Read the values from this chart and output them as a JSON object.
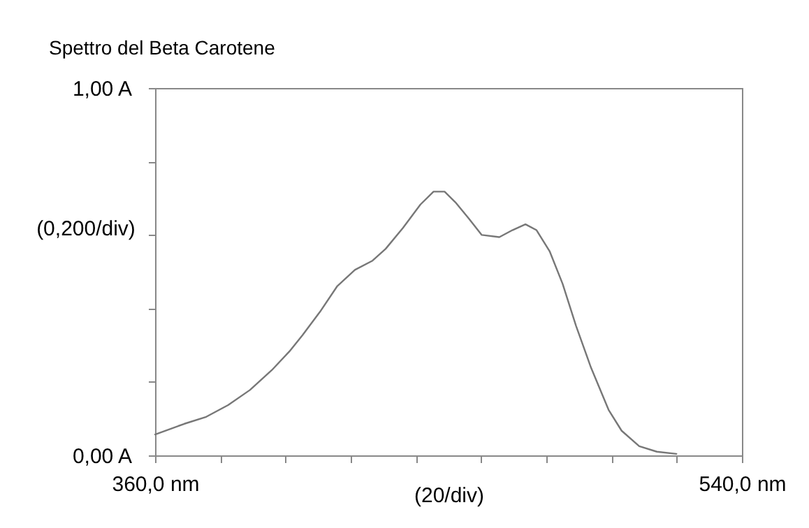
{
  "chart_data": {
    "type": "line",
    "title": "Spettro del Beta Carotene",
    "xlabel": "(20/div)",
    "ylabel": "(0,200/div)",
    "x": [
      360,
      369,
      375.7,
      382.4,
      389.1,
      395.8,
      401.2,
      405.2,
      410.6,
      415.9,
      421.3,
      426.7,
      430.7,
      436.0,
      441.4,
      445.4,
      448.8,
      452.1,
      456.2,
      460.2,
      465.6,
      469.6,
      473.6,
      477.0,
      481.0,
      485.0,
      489.1,
      493.7,
      499.1,
      503.1,
      508.5,
      513.9,
      519.9
    ],
    "values": [
      0.057,
      0.086,
      0.105,
      0.137,
      0.178,
      0.232,
      0.283,
      0.327,
      0.391,
      0.461,
      0.505,
      0.53,
      0.562,
      0.619,
      0.683,
      0.718,
      0.718,
      0.689,
      0.645,
      0.6,
      0.594,
      0.613,
      0.629,
      0.613,
      0.556,
      0.467,
      0.353,
      0.239,
      0.124,
      0.067,
      0.025,
      0.01,
      0.004
    ],
    "color": "#777777",
    "xlim": [
      360,
      540
    ],
    "xticks": [
      {
        "value": 360,
        "label": "360,0 nm"
      },
      {
        "value": 380,
        "label": null
      },
      {
        "value": 400,
        "label": null
      },
      {
        "value": 420,
        "label": null
      },
      {
        "value": 440,
        "label": null
      },
      {
        "value": 460,
        "label": null
      },
      {
        "value": 480,
        "label": null
      },
      {
        "value": 500,
        "label": null
      },
      {
        "value": 520,
        "label": null
      },
      {
        "value": 540,
        "label": "540,0 nm"
      }
    ],
    "ylim": [
      0,
      1
    ],
    "yticks": [
      {
        "value": 0,
        "label": "0,00 A"
      },
      {
        "value": 0.2,
        "label": null
      },
      {
        "value": 0.4,
        "label": null
      },
      {
        "value": 0.6,
        "label": null
      },
      {
        "value": 0.8,
        "label": null
      },
      {
        "value": 1,
        "label": "1,00 A"
      }
    ]
  }
}
